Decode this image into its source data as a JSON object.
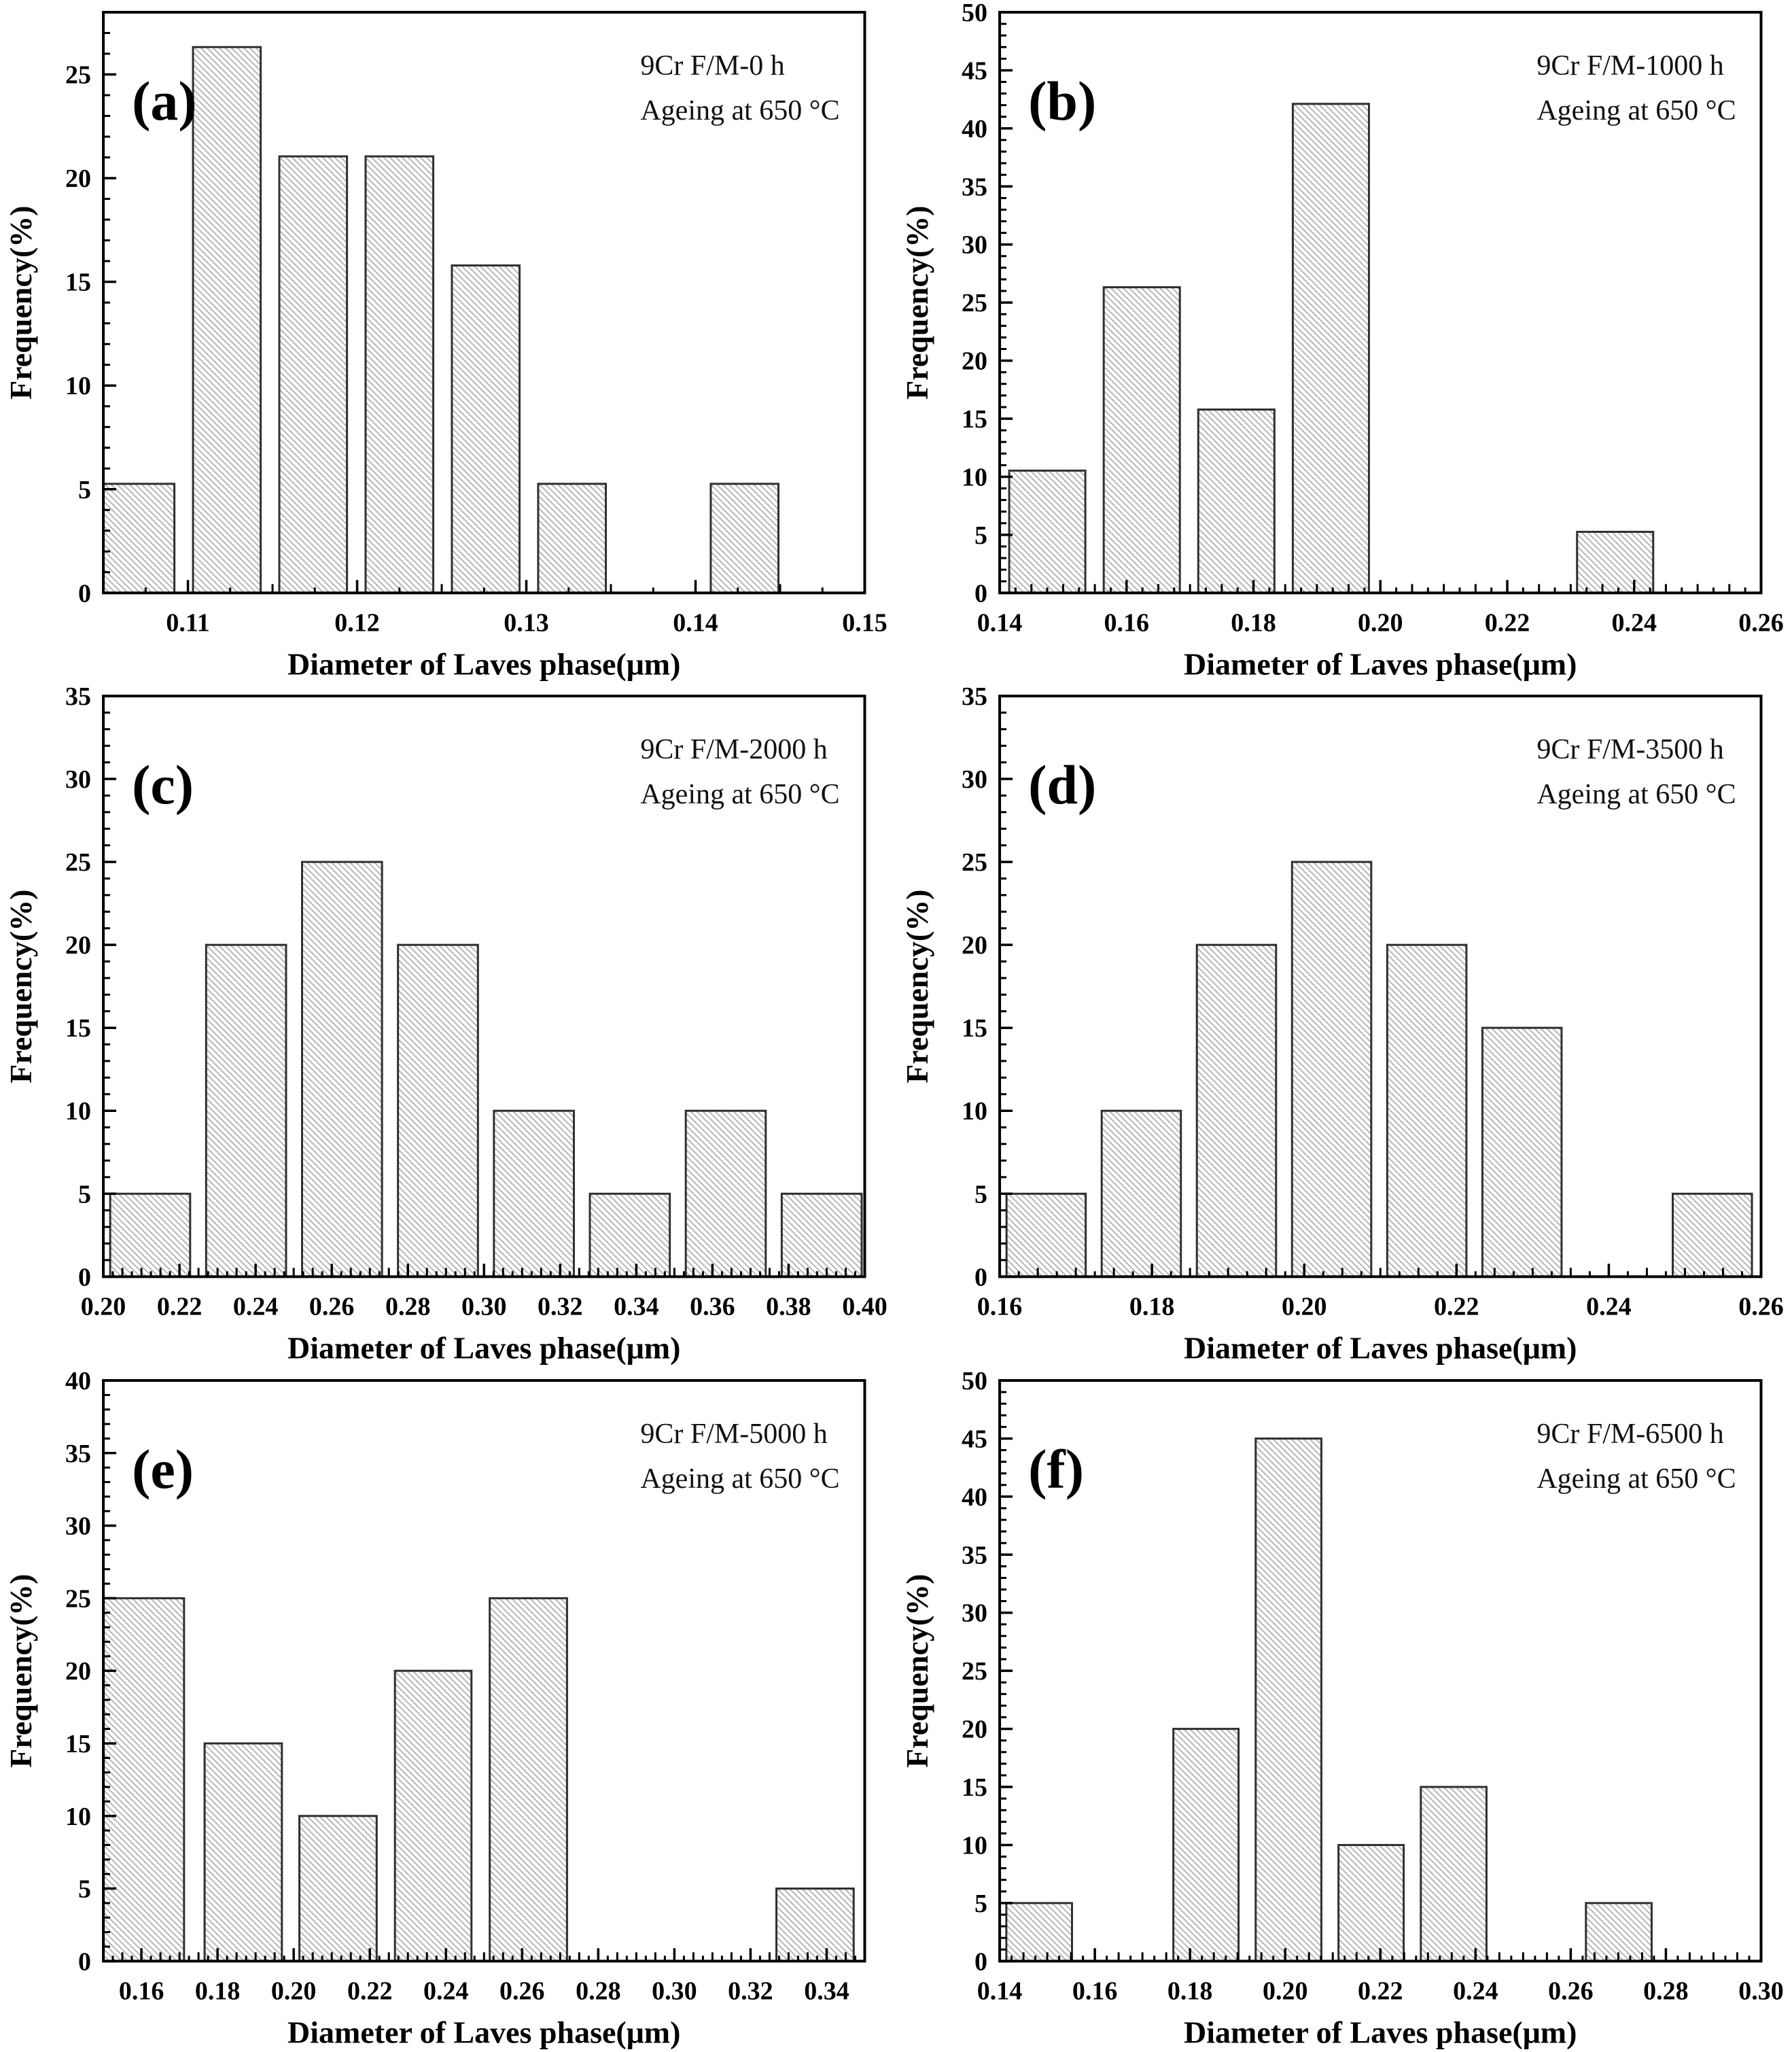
{
  "figure": {
    "description": "Size distribution histograms of Laves phase in 9Cr F/M steel aged at 650 C",
    "xlabel": "Diameter of Laves phase(μm)",
    "ylabel": "Frequency(%)"
  },
  "colors": {
    "background": "#ffffff",
    "axis": "#000000",
    "bar_edge": "#2f2f2f",
    "hatch": "#aaaaaa",
    "text": "#000000"
  },
  "chart_data": [
    {
      "type": "bar",
      "panel_label": "(a)",
      "annotation_line1": "9Cr F/M-0 h",
      "annotation_line2": "Ageing at 650 °C",
      "xlabel": "Diameter of Laves phase(μm)",
      "ylabel": "Frequency(%)",
      "xlim": [
        0.105,
        0.15
      ],
      "ylim": [
        0,
        28
      ],
      "xticks": [
        0.11,
        0.12,
        0.13,
        0.14,
        0.15
      ],
      "xtick_labels": [
        "0.11",
        "0.12",
        "0.13",
        "0.14",
        "0.15"
      ],
      "yticks": [
        0,
        5,
        10,
        15,
        20,
        25
      ],
      "ytick_labels": [
        "0",
        "5",
        "10",
        "15",
        "20",
        "25"
      ],
      "x_minor_step": 0.0025,
      "x_mid_step": 0.005,
      "y_minor_step": 1,
      "grid": false,
      "legend": "none",
      "bars": [
        {
          "x0": 0.105,
          "x1": 0.1092,
          "v": 5.26
        },
        {
          "x0": 0.1103,
          "x1": 0.1143,
          "v": 26.32
        },
        {
          "x0": 0.1154,
          "x1": 0.1194,
          "v": 21.05
        },
        {
          "x0": 0.1205,
          "x1": 0.1245,
          "v": 21.05
        },
        {
          "x0": 0.1256,
          "x1": 0.1296,
          "v": 15.79
        },
        {
          "x0": 0.1307,
          "x1": 0.1347,
          "v": 5.26
        },
        {
          "x0": 0.1409,
          "x1": 0.1449,
          "v": 5.26
        }
      ]
    },
    {
      "type": "bar",
      "panel_label": "(b)",
      "annotation_line1": "9Cr F/M-1000 h",
      "annotation_line2": "Ageing at 650 °C",
      "xlabel": "Diameter of Laves phase(μm)",
      "ylabel": "Frequency(%)",
      "xlim": [
        0.14,
        0.26
      ],
      "ylim": [
        0,
        50
      ],
      "xticks": [
        0.14,
        0.16,
        0.18,
        0.2,
        0.22,
        0.24,
        0.26
      ],
      "xtick_labels": [
        "0.14",
        "0.16",
        "0.18",
        "0.20",
        "0.22",
        "0.24",
        "0.26"
      ],
      "yticks": [
        0,
        5,
        10,
        15,
        20,
        25,
        30,
        35,
        40,
        45,
        50
      ],
      "ytick_labels": [
        "0",
        "5",
        "10",
        "15",
        "20",
        "25",
        "30",
        "35",
        "40",
        "45",
        "50"
      ],
      "x_minor_step": 0.0025,
      "x_mid_step": 0.005,
      "y_minor_step": 1,
      "grid": false,
      "legend": "none",
      "bars": [
        {
          "x0": 0.1415,
          "x1": 0.1535,
          "v": 10.53
        },
        {
          "x0": 0.1564,
          "x1": 0.1684,
          "v": 26.32
        },
        {
          "x0": 0.1713,
          "x1": 0.1833,
          "v": 15.79
        },
        {
          "x0": 0.1862,
          "x1": 0.1982,
          "v": 42.11
        },
        {
          "x0": 0.231,
          "x1": 0.243,
          "v": 5.26
        }
      ]
    },
    {
      "type": "bar",
      "panel_label": "(c)",
      "annotation_line1": "9Cr F/M-2000 h",
      "annotation_line2": "Ageing at 650 °C",
      "xlabel": "Diameter of Laves phase(μm)",
      "ylabel": "Frequency(%)",
      "xlim": [
        0.2,
        0.4
      ],
      "ylim": [
        0,
        35
      ],
      "xticks": [
        0.2,
        0.22,
        0.24,
        0.26,
        0.28,
        0.3,
        0.32,
        0.34,
        0.36,
        0.38,
        0.4
      ],
      "xtick_labels": [
        "0.20",
        "0.22",
        "0.24",
        "0.26",
        "0.28",
        "0.30",
        "0.32",
        "0.34",
        "0.36",
        "0.38",
        "0.40"
      ],
      "yticks": [
        0,
        5,
        10,
        15,
        20,
        25,
        30,
        35
      ],
      "ytick_labels": [
        "0",
        "5",
        "10",
        "15",
        "20",
        "25",
        "30",
        "35"
      ],
      "x_minor_step": 0.0025,
      "x_mid_step": 0.005,
      "y_minor_step": 1,
      "grid": false,
      "legend": "none",
      "bars": [
        {
          "x0": 0.2018,
          "x1": 0.2228,
          "v": 5
        },
        {
          "x0": 0.227,
          "x1": 0.248,
          "v": 20
        },
        {
          "x0": 0.2522,
          "x1": 0.2732,
          "v": 25
        },
        {
          "x0": 0.2774,
          "x1": 0.2984,
          "v": 20
        },
        {
          "x0": 0.3026,
          "x1": 0.3236,
          "v": 10
        },
        {
          "x0": 0.3278,
          "x1": 0.3488,
          "v": 5
        },
        {
          "x0": 0.353,
          "x1": 0.374,
          "v": 10
        },
        {
          "x0": 0.3782,
          "x1": 0.3992,
          "v": 5
        }
      ]
    },
    {
      "type": "bar",
      "panel_label": "(d)",
      "annotation_line1": "9Cr F/M-3500 h",
      "annotation_line2": "Ageing at 650 °C",
      "xlabel": "Diameter of Laves phase(μm)",
      "ylabel": "Frequency(%)",
      "xlim": [
        0.16,
        0.26
      ],
      "ylim": [
        0,
        35
      ],
      "xticks": [
        0.16,
        0.18,
        0.2,
        0.22,
        0.24,
        0.26
      ],
      "xtick_labels": [
        "0.16",
        "0.18",
        "0.20",
        "0.22",
        "0.24",
        "0.26"
      ],
      "yticks": [
        0,
        5,
        10,
        15,
        20,
        25,
        30,
        35
      ],
      "ytick_labels": [
        "0",
        "5",
        "10",
        "15",
        "20",
        "25",
        "30",
        "35"
      ],
      "x_minor_step": 0.0025,
      "x_mid_step": 0.005,
      "y_minor_step": 1,
      "grid": false,
      "legend": "none",
      "bars": [
        {
          "x0": 0.1609,
          "x1": 0.1713,
          "v": 5
        },
        {
          "x0": 0.1734,
          "x1": 0.1838,
          "v": 10
        },
        {
          "x0": 0.1859,
          "x1": 0.1963,
          "v": 20
        },
        {
          "x0": 0.1984,
          "x1": 0.2088,
          "v": 25
        },
        {
          "x0": 0.2109,
          "x1": 0.2213,
          "v": 20
        },
        {
          "x0": 0.2234,
          "x1": 0.2338,
          "v": 15
        },
        {
          "x0": 0.2484,
          "x1": 0.2588,
          "v": 5
        }
      ]
    },
    {
      "type": "bar",
      "panel_label": "(e)",
      "annotation_line1": "9Cr F/M-5000 h",
      "annotation_line2": "Ageing at 650 °C",
      "xlabel": "Diameter of Laves phase(μm)",
      "ylabel": "Frequency(%)",
      "xlim": [
        0.15,
        0.35
      ],
      "ylim": [
        0,
        40
      ],
      "xticks": [
        0.16,
        0.18,
        0.2,
        0.22,
        0.24,
        0.26,
        0.28,
        0.3,
        0.32,
        0.34
      ],
      "xtick_labels": [
        "0.16",
        "0.18",
        "0.20",
        "0.22",
        "0.24",
        "0.26",
        "0.28",
        "0.30",
        "0.32",
        "0.34"
      ],
      "yticks": [
        0,
        5,
        10,
        15,
        20,
        25,
        30,
        35,
        40
      ],
      "ytick_labels": [
        "0",
        "5",
        "10",
        "15",
        "20",
        "25",
        "30",
        "35",
        "40"
      ],
      "x_minor_step": 0.0025,
      "x_mid_step": 0.005,
      "y_minor_step": 1,
      "grid": false,
      "legend": "none",
      "bars": [
        {
          "x0": 0.1501,
          "x1": 0.1712,
          "v": 25
        },
        {
          "x0": 0.1766,
          "x1": 0.1969,
          "v": 15
        },
        {
          "x0": 0.2015,
          "x1": 0.2218,
          "v": 10
        },
        {
          "x0": 0.2266,
          "x1": 0.2467,
          "v": 20
        },
        {
          "x0": 0.2515,
          "x1": 0.2718,
          "v": 25
        },
        {
          "x0": 0.3268,
          "x1": 0.3471,
          "v": 5
        }
      ]
    },
    {
      "type": "bar",
      "panel_label": "(f)",
      "annotation_line1": "9Cr F/M-6500 h",
      "annotation_line2": "Ageing at 650 °C",
      "xlabel": "Diameter of Laves phase(μm)",
      "ylabel": "Frequency(%)",
      "xlim": [
        0.14,
        0.3
      ],
      "ylim": [
        0,
        50
      ],
      "xticks": [
        0.14,
        0.16,
        0.18,
        0.2,
        0.22,
        0.24,
        0.26,
        0.28,
        0.3
      ],
      "xtick_labels": [
        "0.14",
        "0.16",
        "0.18",
        "0.20",
        "0.22",
        "0.24",
        "0.26",
        "0.28",
        "0.30"
      ],
      "yticks": [
        0,
        5,
        10,
        15,
        20,
        25,
        30,
        35,
        40,
        45,
        50
      ],
      "ytick_labels": [
        "0",
        "5",
        "10",
        "15",
        "20",
        "25",
        "30",
        "35",
        "40",
        "45",
        "50"
      ],
      "x_minor_step": 0.0025,
      "x_mid_step": 0.005,
      "y_minor_step": 1,
      "grid": false,
      "legend": "none",
      "bars": [
        {
          "x0": 0.1414,
          "x1": 0.1552,
          "v": 5
        },
        {
          "x0": 0.1765,
          "x1": 0.1902,
          "v": 20
        },
        {
          "x0": 0.1938,
          "x1": 0.2076,
          "v": 45
        },
        {
          "x0": 0.2112,
          "x1": 0.2249,
          "v": 10
        },
        {
          "x0": 0.2285,
          "x1": 0.2423,
          "v": 15
        },
        {
          "x0": 0.2632,
          "x1": 0.277,
          "v": 5
        }
      ]
    }
  ]
}
